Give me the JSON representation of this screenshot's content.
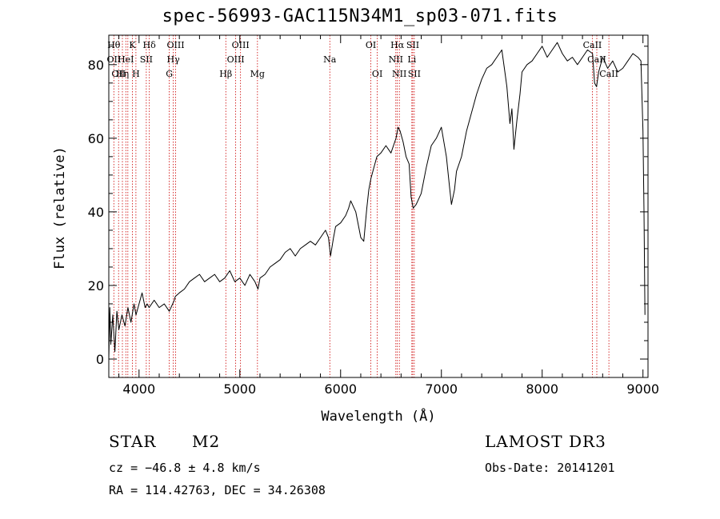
{
  "title": "spec-56993-GAC115N34M1_sp03-071.fits",
  "info": {
    "class": "STAR",
    "subclass": "M2",
    "cz": "cz = −46.8 ± 4.8 km/s",
    "coords": "RA = 114.42763, DEC =  34.26308",
    "survey": "LAMOST DR3",
    "obs_date": "Obs-Date: 20141201"
  },
  "chart_data": {
    "type": "line",
    "title": "spec-56993-GAC115N34M1_sp03-071.fits",
    "xlabel": "Wavelength (Å)",
    "ylabel": "Flux (relative)",
    "xlim": [
      3700,
      9050
    ],
    "ylim": [
      -5,
      88
    ],
    "xticks": [
      4000,
      5000,
      6000,
      7000,
      8000,
      9000
    ],
    "yticks": [
      0,
      20,
      40,
      60,
      80
    ],
    "series": [
      {
        "x": [
          3700,
          3710,
          3720,
          3740,
          3760,
          3780,
          3800,
          3830,
          3860,
          3890,
          3920,
          3950,
          3970,
          4000,
          4030,
          4060,
          4080,
          4100,
          4150,
          4200,
          4250,
          4300,
          4350,
          4360,
          4400,
          4450,
          4500,
          4550,
          4600,
          4650,
          4700,
          4750,
          4800,
          4850,
          4900,
          4950,
          5000,
          5050,
          5100,
          5150,
          5180,
          5200,
          5250,
          5300,
          5350,
          5400,
          5450,
          5500,
          5550,
          5600,
          5650,
          5700,
          5750,
          5800,
          5850,
          5880,
          5900,
          5930,
          5950,
          6000,
          6050,
          6080,
          6100,
          6150,
          6200,
          6230,
          6260,
          6280,
          6300,
          6330,
          6360,
          6400,
          6450,
          6500,
          6550,
          6570,
          6590,
          6620,
          6650,
          6680,
          6700,
          6720,
          6750,
          6800,
          6850,
          6900,
          6950,
          7000,
          7050,
          7080,
          7100,
          7130,
          7150,
          7200,
          7250,
          7300,
          7350,
          7400,
          7450,
          7500,
          7550,
          7600,
          7630,
          7650,
          7680,
          7700,
          7720,
          7750,
          7780,
          7800,
          7850,
          7900,
          7950,
          8000,
          8050,
          8100,
          8150,
          8200,
          8250,
          8300,
          8350,
          8400,
          8450,
          8500,
          8520,
          8540,
          8560,
          8600,
          8650,
          8700,
          8750,
          8800,
          8850,
          8900,
          8950,
          8980,
          9000,
          9010,
          9020
        ],
        "y": [
          0,
          14,
          4,
          12,
          2,
          13,
          8,
          12,
          9,
          14,
          10,
          15,
          12,
          15,
          18,
          14,
          15,
          14,
          16,
          14,
          15,
          13,
          16,
          17,
          18,
          19,
          21,
          22,
          23,
          21,
          22,
          23,
          21,
          22,
          24,
          21,
          22,
          20,
          23,
          21,
          19,
          22,
          23,
          25,
          26,
          27,
          29,
          30,
          28,
          30,
          31,
          32,
          31,
          33,
          35,
          33,
          28,
          33,
          36,
          37,
          39,
          41,
          43,
          40,
          33,
          32,
          41,
          46,
          49,
          52,
          55,
          56,
          58,
          56,
          60,
          63,
          62,
          59,
          55,
          53,
          44,
          41,
          42,
          45,
          52,
          58,
          60,
          63,
          55,
          47,
          42,
          46,
          51,
          55,
          62,
          67,
          72,
          76,
          79,
          80,
          82,
          84,
          78,
          74,
          64,
          68,
          57,
          65,
          72,
          78,
          80,
          81,
          83,
          85,
          82,
          84,
          86,
          83,
          81,
          82,
          80,
          82,
          84,
          83,
          75,
          74,
          78,
          82,
          79,
          81,
          78,
          79,
          81,
          83,
          82,
          81,
          62,
          40,
          12
        ]
      }
    ],
    "lines": [
      {
        "x": 3750,
        "labels": [
          "Hθ",
          "OII"
        ],
        "rows": [
          0,
          1
        ]
      },
      {
        "x": 3797,
        "labels": [
          "OII"
        ],
        "rows": [
          2
        ]
      },
      {
        "x": 3835,
        "labels": [
          "Hη"
        ],
        "rows": [
          2
        ]
      },
      {
        "x": 3869,
        "labels": [
          "HeI"
        ],
        "rows": [
          1
        ]
      },
      {
        "x": 3889,
        "labels": [],
        "rows": []
      },
      {
        "x": 3934,
        "labels": [
          "K"
        ],
        "rows": [
          0
        ]
      },
      {
        "x": 3969,
        "labels": [
          "H"
        ],
        "rows": [
          2
        ]
      },
      {
        "x": 4072,
        "labels": [
          "SII"
        ],
        "rows": [
          1
        ]
      },
      {
        "x": 4102,
        "labels": [
          "Hδ"
        ],
        "rows": [
          0
        ]
      },
      {
        "x": 4300,
        "labels": [
          "G"
        ],
        "rows": [
          2
        ]
      },
      {
        "x": 4340,
        "labels": [
          "Hγ"
        ],
        "rows": [
          1
        ]
      },
      {
        "x": 4363,
        "labels": [
          "OIII"
        ],
        "rows": [
          0
        ]
      },
      {
        "x": 4861,
        "labels": [
          "Hβ"
        ],
        "rows": [
          2
        ]
      },
      {
        "x": 4959,
        "labels": [
          "OIII"
        ],
        "rows": [
          1
        ]
      },
      {
        "x": 5007,
        "labels": [
          "OIII"
        ],
        "rows": [
          0
        ]
      },
      {
        "x": 5175,
        "labels": [
          "Mg"
        ],
        "rows": [
          2
        ]
      },
      {
        "x": 5893,
        "labels": [
          "Na"
        ],
        "rows": [
          1
        ]
      },
      {
        "x": 6300,
        "labels": [
          "OI"
        ],
        "rows": [
          0
        ]
      },
      {
        "x": 6364,
        "labels": [
          "OI"
        ],
        "rows": [
          2
        ]
      },
      {
        "x": 6548,
        "labels": [
          "NII"
        ],
        "rows": [
          1
        ]
      },
      {
        "x": 6563,
        "labels": [
          "Hα"
        ],
        "rows": [
          0
        ]
      },
      {
        "x": 6583,
        "labels": [
          "NII"
        ],
        "rows": [
          2
        ]
      },
      {
        "x": 6707,
        "labels": [
          "Li"
        ],
        "rows": [
          1
        ]
      },
      {
        "x": 6716,
        "labels": [
          "SII"
        ],
        "rows": [
          0
        ]
      },
      {
        "x": 6731,
        "labels": [
          "SII"
        ],
        "rows": [
          2
        ]
      },
      {
        "x": 8498,
        "labels": [
          "CaII"
        ],
        "rows": [
          0
        ]
      },
      {
        "x": 8542,
        "labels": [
          "CaII"
        ],
        "rows": [
          1
        ]
      },
      {
        "x": 8662,
        "labels": [
          "CaII"
        ],
        "rows": [
          2
        ]
      }
    ],
    "colors": {
      "spectrum": "#000000",
      "lines": "#cc0000",
      "axes": "#000000"
    },
    "grid": false,
    "legend": "none"
  }
}
